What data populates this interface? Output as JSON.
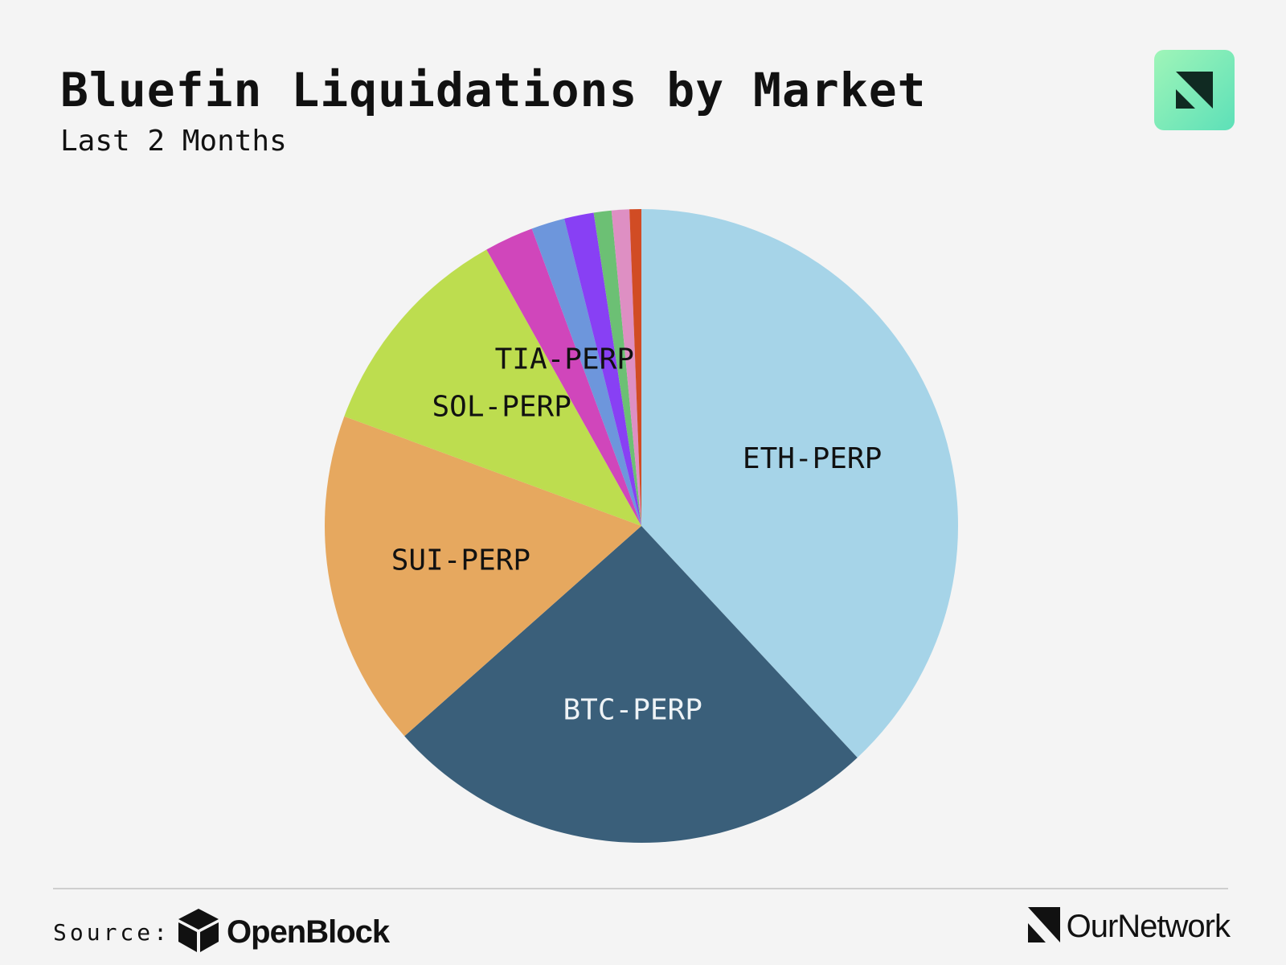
{
  "header": {
    "title": "Bluefin Liquidations by Market",
    "subtitle": "Last 2 Months"
  },
  "footer": {
    "source_label": "Source:",
    "source_name": "OpenBlock",
    "brand_name": "OurNetwork"
  },
  "icons": {
    "brand_badge": "ournetwork-logo-icon",
    "source_logo": "openblock-cube-icon",
    "footer_brand_logo": "ournetwork-logo-icon"
  },
  "chart_data": {
    "type": "pie",
    "title": "Bluefin Liquidations by Market",
    "subtitle": "Last 2 Months",
    "legend": "none",
    "unit": "share of total liquidations (%)",
    "slices": [
      {
        "label": "ETH-PERP",
        "value": 37.9,
        "color": "#a6d4e8",
        "label_color": "#111111"
      },
      {
        "label": "BTC-PERP",
        "value": 25.3,
        "color": "#3a5f7a",
        "label_color": "#eef3f6"
      },
      {
        "label": "SUI-PERP",
        "value": 17.1,
        "color": "#e6a85f",
        "label_color": "#111111"
      },
      {
        "label": "SOL-PERP",
        "value": 11.2,
        "color": "#bddd4f",
        "label_color": "#111111"
      },
      {
        "label": "TIA-PERP",
        "value": 2.5,
        "color": "#d046bb",
        "label_color": "#111111"
      },
      {
        "label": "",
        "value": 1.7,
        "color": "#6d96dc"
      },
      {
        "label": "",
        "value": 1.5,
        "color": "#8840f4"
      },
      {
        "label": "",
        "value": 0.9,
        "color": "#6cc074"
      },
      {
        "label": "",
        "value": 0.9,
        "color": "#de8fc3"
      },
      {
        "label": "",
        "value": 0.6,
        "color": "#d14c24"
      }
    ]
  }
}
